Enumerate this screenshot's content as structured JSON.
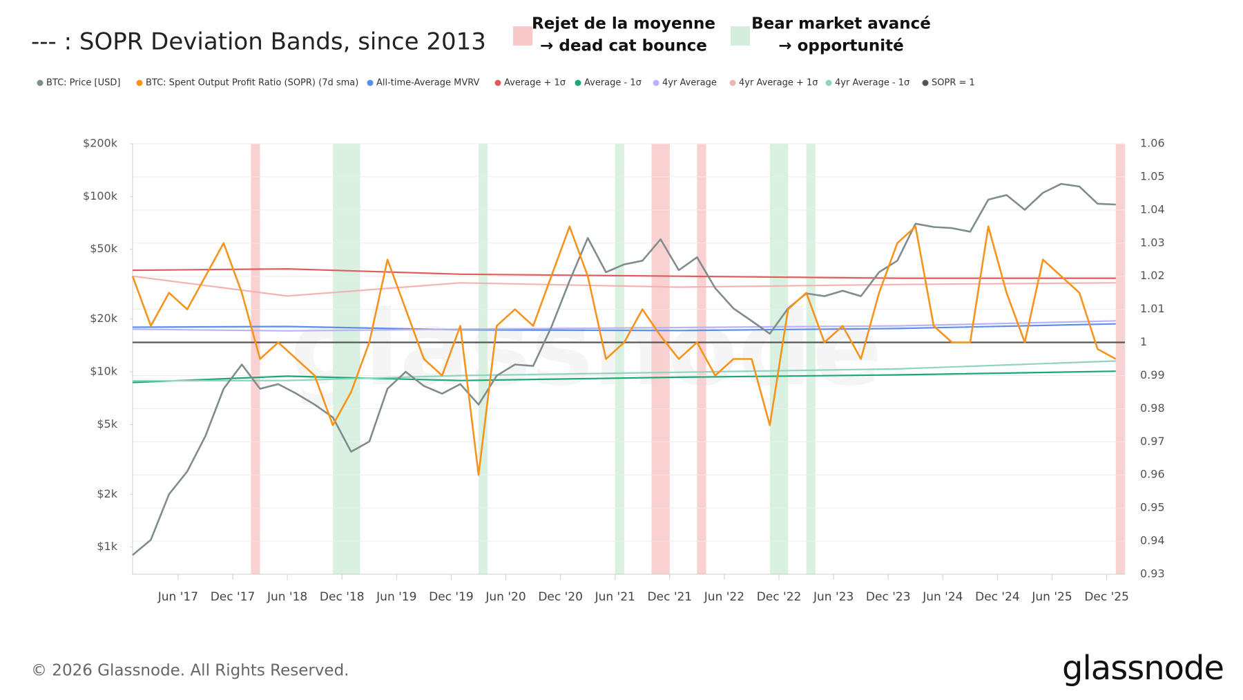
{
  "chart_data": {
    "type": "line",
    "title": "--- : SOPR Deviation Bands, since 2013",
    "annotations": [
      {
        "lines": [
          "Rejet de la moyenne",
          "→ dead cat bounce"
        ],
        "color": "#f8c9c9"
      },
      {
        "lines": [
          "Bear market avancé",
          "→ opportunité"
        ],
        "color": "#d3eedd"
      }
    ],
    "spans": [
      {
        "start": "2018-02",
        "end": "2018-03",
        "color": "#f8c9c9"
      },
      {
        "start": "2018-11",
        "end": "2019-02",
        "color": "#d3eedd"
      },
      {
        "start": "2020-03",
        "end": "2020-04",
        "color": "#d3eedd"
      },
      {
        "start": "2021-06",
        "end": "2021-07",
        "color": "#d3eedd"
      },
      {
        "start": "2021-10",
        "end": "2021-12",
        "color": "#f8c9c9"
      },
      {
        "start": "2022-03",
        "end": "2022-04",
        "color": "#f8c9c9"
      },
      {
        "start": "2022-11",
        "end": "2023-01",
        "color": "#d3eedd"
      },
      {
        "start": "2023-03",
        "end": "2023-04",
        "color": "#d3eedd"
      },
      {
        "start": "2026-01",
        "end": "2026-02",
        "color": "#f8c9c9"
      }
    ],
    "x": [
      "2017-01",
      "2017-03",
      "2017-05",
      "2017-07",
      "2017-09",
      "2017-11",
      "2018-01",
      "2018-03",
      "2018-05",
      "2018-07",
      "2018-09",
      "2018-11",
      "2019-01",
      "2019-03",
      "2019-05",
      "2019-07",
      "2019-09",
      "2019-11",
      "2020-01",
      "2020-03",
      "2020-05",
      "2020-07",
      "2020-09",
      "2020-11",
      "2021-01",
      "2021-03",
      "2021-05",
      "2021-07",
      "2021-09",
      "2021-11",
      "2022-01",
      "2022-03",
      "2022-05",
      "2022-07",
      "2022-09",
      "2022-11",
      "2023-01",
      "2023-03",
      "2023-05",
      "2023-07",
      "2023-09",
      "2023-11",
      "2024-01",
      "2024-03",
      "2024-05",
      "2024-07",
      "2024-09",
      "2024-11",
      "2025-01",
      "2025-03",
      "2025-05",
      "2025-07",
      "2025-09",
      "2025-11",
      "2026-01"
    ],
    "xlim": [
      "2017-01",
      "2026-02"
    ],
    "xticks": [
      {
        "value": "2017-06",
        "label": "Jun '17"
      },
      {
        "value": "2017-12",
        "label": "Dec '17"
      },
      {
        "value": "2018-06",
        "label": "Jun '18"
      },
      {
        "value": "2018-12",
        "label": "Dec '18"
      },
      {
        "value": "2019-06",
        "label": "Jun '19"
      },
      {
        "value": "2019-12",
        "label": "Dec '19"
      },
      {
        "value": "2020-06",
        "label": "Jun '20"
      },
      {
        "value": "2020-12",
        "label": "Dec '20"
      },
      {
        "value": "2021-06",
        "label": "Jun '21"
      },
      {
        "value": "2021-12",
        "label": "Dec '21"
      },
      {
        "value": "2022-06",
        "label": "Jun '22"
      },
      {
        "value": "2022-12",
        "label": "Dec '22"
      },
      {
        "value": "2023-06",
        "label": "Jun '23"
      },
      {
        "value": "2023-12",
        "label": "Dec '23"
      },
      {
        "value": "2024-06",
        "label": "Jun '24"
      },
      {
        "value": "2024-12",
        "label": "Dec '24"
      },
      {
        "value": "2025-06",
        "label": "Jun '25"
      },
      {
        "value": "2025-12",
        "label": "Dec '25"
      }
    ],
    "ylog": true,
    "ylim": [
      700,
      200000
    ],
    "yticks": [
      {
        "value": 1000,
        "label": "$1k"
      },
      {
        "value": 2000,
        "label": "$2k"
      },
      {
        "value": 5000,
        "label": "$5k"
      },
      {
        "value": 10000,
        "label": "$10k"
      },
      {
        "value": 20000,
        "label": "$20k"
      },
      {
        "value": 50000,
        "label": "$50k"
      },
      {
        "value": 100000,
        "label": "$100k"
      },
      {
        "value": 200000,
        "label": "$200k"
      }
    ],
    "y2lim": [
      0.93,
      1.06
    ],
    "y2ticks": [
      0.93,
      0.94,
      0.95,
      0.96,
      0.97,
      0.98,
      0.99,
      1,
      1.01,
      1.02,
      1.03,
      1.04,
      1.05,
      1.06
    ],
    "grid": true,
    "series": [
      {
        "name": "BTC: Price [USD]",
        "color": "#7f8c8d",
        "axis": "y",
        "values": [
          900,
          1100,
          2000,
          2700,
          4300,
          8000,
          11000,
          8000,
          8500,
          7500,
          6500,
          5500,
          3500,
          4000,
          8000,
          10000,
          8300,
          7500,
          8500,
          6500,
          9500,
          11000,
          10800,
          18000,
          33000,
          58000,
          37000,
          41000,
          43000,
          57000,
          38000,
          45000,
          30000,
          23000,
          19500,
          16500,
          23000,
          28000,
          27000,
          29000,
          27000,
          37000,
          43000,
          70000,
          67000,
          66000,
          63000,
          96000,
          102000,
          84000,
          105000,
          118000,
          114000,
          91000,
          90000
        ]
      },
      {
        "name": "BTC: Spent Output Profit Ratio (SOPR) (7d sma)",
        "color": "#f7931a",
        "axis": "y2",
        "values": [
          1.02,
          1.005,
          1.015,
          1.01,
          1.02,
          1.03,
          1.015,
          0.995,
          1.0,
          0.995,
          0.99,
          0.975,
          0.985,
          1.0,
          1.025,
          1.01,
          0.995,
          0.99,
          1.005,
          0.96,
          1.005,
          1.01,
          1.005,
          1.02,
          1.035,
          1.02,
          0.995,
          1.0,
          1.01,
          1.002,
          0.995,
          1.0,
          0.99,
          0.995,
          0.995,
          0.975,
          1.01,
          1.015,
          1.0,
          1.005,
          0.995,
          1.015,
          1.03,
          1.035,
          1.005,
          1.0,
          1.0,
          1.035,
          1.015,
          1.0,
          1.025,
          1.02,
          1.015,
          0.998,
          0.995
        ]
      },
      {
        "name": "All-time-Average MVRV",
        "color": "#5b8def",
        "axis": "y2",
        "x": [
          "2017-01",
          "2018-06",
          "2020-01",
          "2022-01",
          "2024-01",
          "2026-01"
        ],
        "values": [
          1.0046,
          1.0048,
          1.0038,
          1.0036,
          1.0042,
          1.0056
        ]
      },
      {
        "name": "Average + 1σ",
        "color": "#e05c5c",
        "axis": "y2",
        "x": [
          "2017-01",
          "2018-06",
          "2020-01",
          "2022-01",
          "2024-01",
          "2026-01"
        ],
        "values": [
          1.0218,
          1.0222,
          1.0206,
          1.02,
          1.0194,
          1.0194
        ]
      },
      {
        "name": "Average - 1σ",
        "color": "#1aa874",
        "axis": "y2",
        "x": [
          "2017-01",
          "2018-06",
          "2020-01",
          "2022-01",
          "2024-01",
          "2026-01"
        ],
        "values": [
          0.9879,
          0.9898,
          0.9885,
          0.9895,
          0.9902,
          0.9913
        ]
      },
      {
        "name": "4yr Average",
        "color": "#b9b3f5",
        "axis": "y2",
        "x": [
          "2017-01",
          "2018-06",
          "2020-01",
          "2022-01",
          "2024-01",
          "2026-01"
        ],
        "values": [
          1.004,
          1.0035,
          1.004,
          1.0045,
          1.005,
          1.0065
        ]
      },
      {
        "name": "4yr Average + 1σ",
        "color": "#f4b3b3",
        "axis": "y2",
        "x": [
          "2017-01",
          "2018-06",
          "2020-01",
          "2022-01",
          "2024-01",
          "2026-01"
        ],
        "values": [
          1.02,
          1.014,
          1.018,
          1.0167,
          1.0175,
          1.018
        ]
      },
      {
        "name": "4yr Average - 1σ",
        "color": "#8fd3c1",
        "axis": "y2",
        "x": [
          "2017-01",
          "2018-06",
          "2020-01",
          "2022-01",
          "2024-01",
          "2026-01"
        ],
        "values": [
          0.9884,
          0.9885,
          0.99,
          0.991,
          0.992,
          0.9944
        ]
      },
      {
        "name": "SOPR = 1",
        "color": "#555555",
        "axis": "y2",
        "x": [
          "2017-01",
          "2026-02"
        ],
        "values": [
          1,
          1
        ]
      }
    ],
    "watermark": "glassnode",
    "footer": "© 2026 Glassnode. All Rights Reserved.",
    "logo": "glassnode"
  }
}
